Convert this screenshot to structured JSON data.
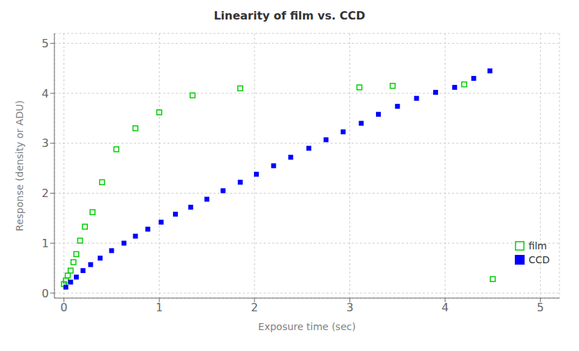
{
  "chart_data": {
    "type": "scatter",
    "title": "Linearity of film vs. CCD",
    "xlabel": "Exposure time (sec)",
    "ylabel": "Response (density or ADU)",
    "xlim": [
      -0.1,
      5.2
    ],
    "ylim": [
      -0.1,
      5.2
    ],
    "xticks": [
      0,
      1,
      2,
      3,
      4,
      5
    ],
    "yticks": [
      0,
      1,
      2,
      3,
      4,
      5
    ],
    "grid": true,
    "legend": "lower right",
    "series": [
      {
        "name": "film",
        "color": "#00cc00",
        "marker": "square_open",
        "x": [
          0.0,
          0.02,
          0.04,
          0.07,
          0.1,
          0.13,
          0.17,
          0.22,
          0.3,
          0.4,
          0.55,
          0.75,
          1.0,
          1.35,
          1.85,
          3.1,
          3.45,
          4.2,
          4.5
        ],
        "values": [
          0.18,
          0.25,
          0.35,
          0.45,
          0.62,
          0.78,
          1.05,
          1.33,
          1.62,
          2.22,
          2.88,
          3.3,
          3.62,
          3.96,
          4.1,
          4.12,
          4.15,
          4.18,
          0.28
        ]
      },
      {
        "name": "CCD",
        "color": "#0000ff",
        "marker": "square",
        "x": [
          0.02,
          0.07,
          0.13,
          0.2,
          0.28,
          0.38,
          0.5,
          0.63,
          0.75,
          0.88,
          1.02,
          1.17,
          1.33,
          1.5,
          1.67,
          1.85,
          2.02,
          2.2,
          2.38,
          2.57,
          2.75,
          2.93,
          3.12,
          3.3,
          3.5,
          3.7,
          3.9,
          4.1,
          4.3,
          4.47
        ],
        "values": [
          0.12,
          0.22,
          0.32,
          0.45,
          0.57,
          0.7,
          0.85,
          1.0,
          1.14,
          1.28,
          1.42,
          1.58,
          1.72,
          1.88,
          2.05,
          2.22,
          2.38,
          2.55,
          2.72,
          2.9,
          3.07,
          3.23,
          3.4,
          3.58,
          3.74,
          3.9,
          4.02,
          4.12,
          4.3,
          4.45
        ]
      }
    ]
  }
}
